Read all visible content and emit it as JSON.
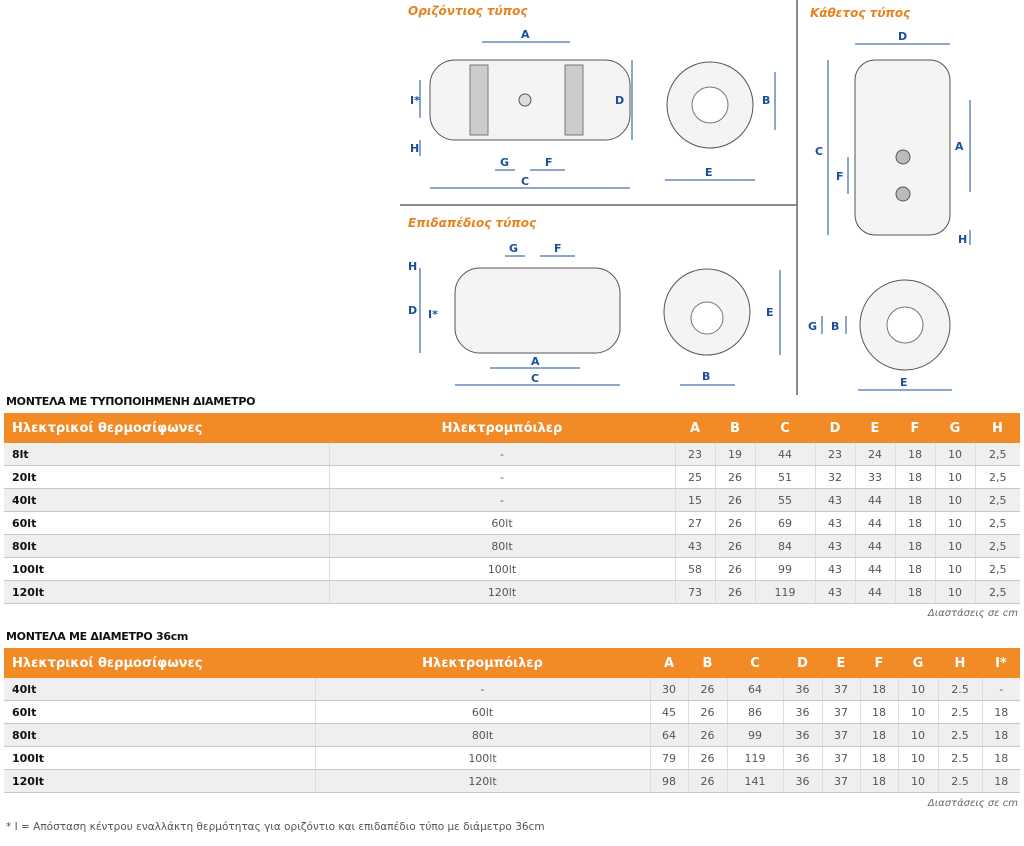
{
  "diagrams": {
    "horizontal_title": "Οριζόντιος τύπος",
    "floor_title": "Επιδαπέδιος τύπος",
    "vertical_title": "Κάθετος τύπος",
    "labels": {
      "A": "A",
      "B": "B",
      "C": "C",
      "D": "D",
      "E": "E",
      "F": "F",
      "G": "G",
      "H": "H",
      "I": "I*"
    }
  },
  "table1": {
    "title": "ΜΟΝΤΕΛΑ ΜΕ ΤΥΠΟΠΟΙΗΜΕΝΗ ΔΙΑΜΕΤΡΟ",
    "headers": [
      "Ηλεκτρικοί θερμοσίφωνες",
      "Ηλεκτρομπόιλερ",
      "A",
      "B",
      "C",
      "D",
      "E",
      "F",
      "G",
      "H"
    ],
    "rows": [
      [
        "8lt",
        "-",
        "23",
        "19",
        "44",
        "23",
        "24",
        "18",
        "10",
        "2,5"
      ],
      [
        "20lt",
        "-",
        "25",
        "26",
        "51",
        "32",
        "33",
        "18",
        "10",
        "2,5"
      ],
      [
        "40lt",
        "-",
        "15",
        "26",
        "55",
        "43",
        "44",
        "18",
        "10",
        "2,5"
      ],
      [
        "60lt",
        "60lt",
        "27",
        "26",
        "69",
        "43",
        "44",
        "18",
        "10",
        "2,5"
      ],
      [
        "80lt",
        "80lt",
        "43",
        "26",
        "84",
        "43",
        "44",
        "18",
        "10",
        "2,5"
      ],
      [
        "100lt",
        "100lt",
        "58",
        "26",
        "99",
        "43",
        "44",
        "18",
        "10",
        "2,5"
      ],
      [
        "120lt",
        "120lt",
        "73",
        "26",
        "119",
        "43",
        "44",
        "18",
        "10",
        "2,5"
      ]
    ],
    "note": "Διαστάσεις σε cm"
  },
  "table2": {
    "title": "ΜΟΝΤΕΛΑ ΜΕ ΔΙΑΜΕΤΡΟ 36cm",
    "headers": [
      "Ηλεκτρικοί θερμοσίφωνες",
      "Ηλεκτρομπόιλερ",
      "A",
      "B",
      "C",
      "D",
      "E",
      "F",
      "G",
      "H",
      "I*"
    ],
    "rows": [
      [
        "40lt",
        "-",
        "30",
        "26",
        "64",
        "36",
        "37",
        "18",
        "10",
        "2.5",
        "-"
      ],
      [
        "60lt",
        "60lt",
        "45",
        "26",
        "86",
        "36",
        "37",
        "18",
        "10",
        "2.5",
        "18"
      ],
      [
        "80lt",
        "80lt",
        "64",
        "26",
        "99",
        "36",
        "37",
        "18",
        "10",
        "2.5",
        "18"
      ],
      [
        "100lt",
        "100lt",
        "79",
        "26",
        "119",
        "36",
        "37",
        "18",
        "10",
        "2.5",
        "18"
      ],
      [
        "120lt",
        "120lt",
        "98",
        "26",
        "141",
        "36",
        "37",
        "18",
        "10",
        "2.5",
        "18"
      ]
    ],
    "note": "Διαστάσεις σε cm"
  },
  "footnote": "* I = Απόσταση κέντρου εναλλάκτη θερμότητας για οριζόντιο και επιδαπέδιο τύπο με διάμετρο 36cm",
  "colors": {
    "header_orange": "#f28a26",
    "dimension_blue": "#1a4f9c"
  }
}
